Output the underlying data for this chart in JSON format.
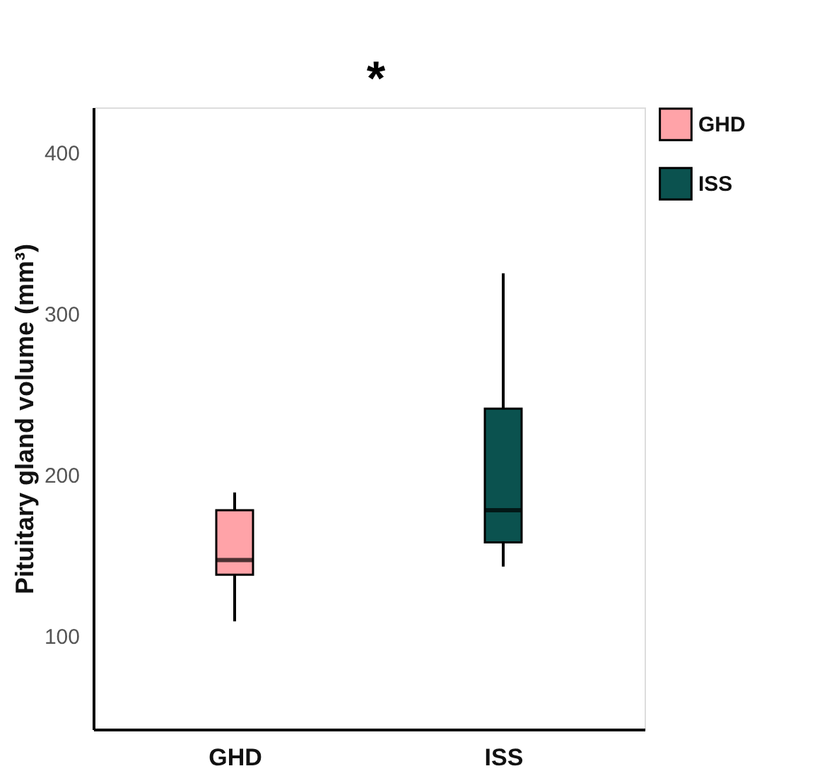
{
  "chart_data": {
    "type": "box",
    "ylabel": "Pituitary gland volume (mm³)",
    "categories": [
      "GHD",
      "ISS"
    ],
    "series": [
      {
        "name": "GHD",
        "color": "#ffa3a8",
        "boxes": [
          {
            "low": 109,
            "q1": 138,
            "median": 147,
            "q3": 178,
            "high": 189
          },
          null
        ]
      },
      {
        "name": "ISS",
        "color": "#0b524f",
        "boxes": [
          null,
          {
            "low": 143,
            "q1": 158,
            "median": 178,
            "q3": 241,
            "high": 325
          }
        ]
      }
    ],
    "ylim": [
      42,
      428
    ],
    "yticks": [
      100,
      200,
      300,
      400
    ],
    "grid": false,
    "legend": "top right",
    "annotations": [
      "*"
    ]
  }
}
